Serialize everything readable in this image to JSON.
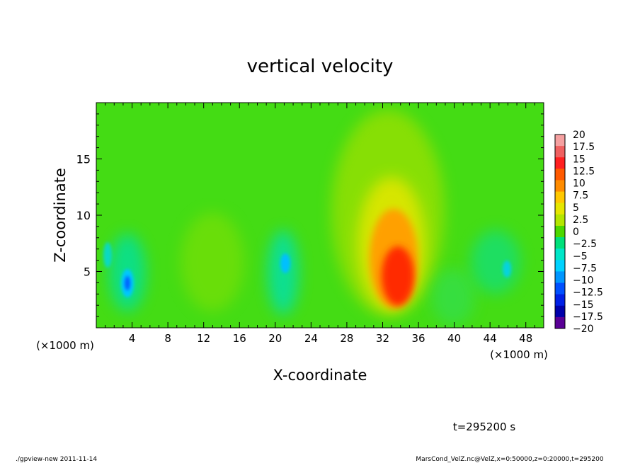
{
  "chart_data": {
    "type": "heatmap",
    "title": "vertical velocity",
    "xlabel": "X-coordinate",
    "ylabel": "Z-coordinate",
    "x_unit_left": "(×1000 m)",
    "x_unit_right": "(×1000 m)",
    "xlim": [
      0,
      50
    ],
    "ylim": [
      0,
      20
    ],
    "x_ticks": [
      "4",
      "8",
      "12",
      "16",
      "20",
      "24",
      "28",
      "32",
      "36",
      "40",
      "44",
      "48"
    ],
    "y_ticks": [
      "5",
      "10",
      "15"
    ],
    "colorbar": {
      "labels": [
        "20",
        "17.5",
        "15",
        "12.5",
        "10",
        "7.5",
        "5",
        "2.5",
        "0",
        "−2.5",
        "−5",
        "−7.5",
        "−10",
        "−12.5",
        "−15",
        "−17.5",
        "−20"
      ],
      "colors": [
        "#f5a0a0",
        "#f06060",
        "#ff2020",
        "#ff5a00",
        "#ff8c00",
        "#ffc800",
        "#e6e600",
        "#b4e600",
        "#4cd800",
        "#00e07a",
        "#00e6c8",
        "#00d2ff",
        "#0096ff",
        "#0050ff",
        "#0020e6",
        "#0000aa",
        "#5a0096"
      ]
    },
    "features": [
      {
        "x": 33.5,
        "z": 5.0,
        "value": 15
      },
      {
        "x": 3.6,
        "z": 4.0,
        "value": -12.5
      },
      {
        "x": 20.8,
        "z": 5.8,
        "value": -8
      }
    ],
    "background_value": 0
  },
  "annotation_time": "t=295200 s",
  "footer_left": "./gpview-new  2011-11-14",
  "footer_right": "MarsCond_VelZ.nc@VelZ,x=0:50000,z=0:20000,t=295200"
}
